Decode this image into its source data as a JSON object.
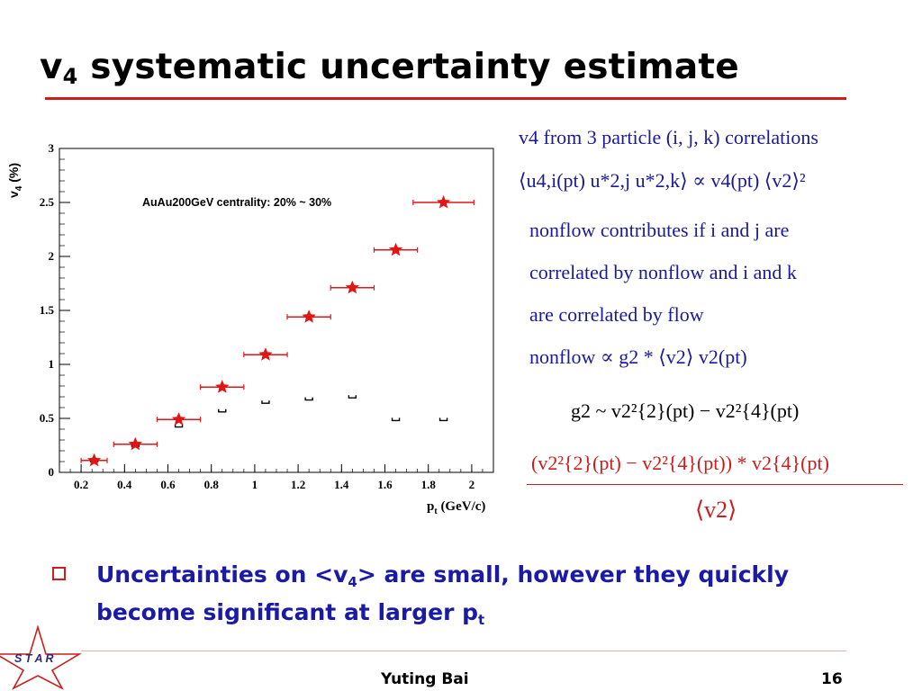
{
  "slide": {
    "title_main": "v",
    "title_sub": "4",
    "title_rest": " systematic uncertainty estimate",
    "footer_name": "Yuting Bai",
    "footer_page": "16",
    "logo_text": "S T A R"
  },
  "equations": {
    "line1": "v4 from 3 particle (i, j, k) correlations",
    "line2": "⟨u4,i(pt) u*2,j u*2,k⟩ ∝ v4(pt) ⟨v2⟩²",
    "line3": "nonflow contributes if i and j are",
    "line4": "correlated by nonflow and i and k",
    "line5": "are correlated by flow",
    "line6": "nonflow ∝ g2 * ⟨v2⟩ v2(pt)",
    "line7": "g2 ~ v2²{2}(pt) − v2²{4}(pt)",
    "line8_num": "(v2²{2}(pt) − v2²{4}(pt)) * v2{4}(pt)",
    "line8_den": "⟨v2⟩"
  },
  "bullet": {
    "text_a": "Uncertainties on <v",
    "sub_a": "4",
    "text_b": "> are small, however they quickly become significant at larger p",
    "sub_b": "t"
  },
  "chart_data": {
    "type": "scatter",
    "title": "AuAu200GeV centrality: 20% ~ 30%",
    "xlabel": "p",
    "xlabel_sub": "t",
    "xlabel_unit": " (GeV/c)",
    "ylabel": "v",
    "ylabel_sub": "4",
    "ylabel_unit": " (%)",
    "xlim": [
      0.1,
      2.1
    ],
    "ylim": [
      0,
      3
    ],
    "x_ticks": [
      0.2,
      0.4,
      0.6,
      0.8,
      1,
      1.2,
      1.4,
      1.6,
      1.8,
      2
    ],
    "x_tick_labels": [
      "0.2",
      "0.4",
      "0.6",
      "0.8",
      "1",
      "1.2",
      "1.4",
      "1.6",
      "1.8",
      "2"
    ],
    "y_ticks": [
      0,
      0.5,
      1,
      1.5,
      2,
      2.5,
      3
    ],
    "y_tick_labels": [
      "0",
      "0.5",
      "1",
      "1.5",
      "2",
      "2.5",
      "3"
    ],
    "grid": false,
    "series": [
      {
        "color": "#e31414",
        "marker": "star",
        "x": [
          0.26,
          0.45,
          0.65,
          0.85,
          1.05,
          1.25,
          1.45,
          1.65,
          1.87
        ],
        "y": [
          0.11,
          0.26,
          0.49,
          0.79,
          1.09,
          1.44,
          1.71,
          2.06,
          2.5
        ],
        "xerr": [
          0.06,
          0.1,
          0.1,
          0.1,
          0.1,
          0.1,
          0.1,
          0.1,
          0.14
        ]
      }
    ],
    "systematics": {
      "color": "#000000",
      "x": [
        0.26,
        0.45,
        0.65,
        0.85,
        1.05,
        1.25,
        1.45,
        1.65,
        1.87
      ],
      "y": [
        0.1,
        0.24,
        0.42,
        0.56,
        0.64,
        0.67,
        0.69,
        0.48,
        0.48
      ]
    }
  }
}
